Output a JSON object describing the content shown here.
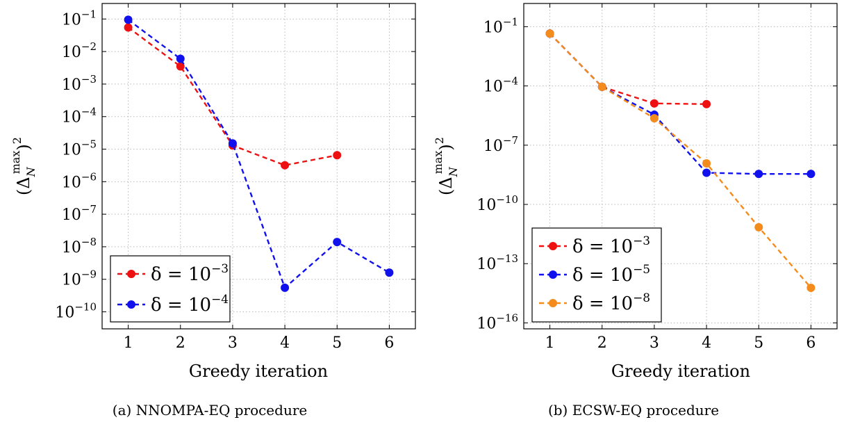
{
  "charts": [
    {
      "caption": "(a) NNOMPA-EQ procedure",
      "xlabel": "Greedy iteration",
      "ylabel_base": "(Δ",
      "ylabel_sub": "N",
      "ylabel_sup": "max",
      "ylabel_close": ")",
      "ylabel_power": "2",
      "x_ticks": [
        "1",
        "2",
        "3",
        "4",
        "5",
        "6"
      ],
      "y_ticks": [
        {
          "base": "10",
          "exp": "−10",
          "value": -10
        },
        {
          "base": "10",
          "exp": "−9",
          "value": -9
        },
        {
          "base": "10",
          "exp": "−8",
          "value": -8
        },
        {
          "base": "10",
          "exp": "−7",
          "value": -7
        },
        {
          "base": "10",
          "exp": "−6",
          "value": -6
        },
        {
          "base": "10",
          "exp": "−5",
          "value": -5
        },
        {
          "base": "10",
          "exp": "−4",
          "value": -4
        },
        {
          "base": "10",
          "exp": "−3",
          "value": -3
        },
        {
          "base": "10",
          "exp": "−2",
          "value": -2
        },
        {
          "base": "10",
          "exp": "−1",
          "value": -1
        }
      ],
      "legend": [
        {
          "prefix": "δ = 10",
          "exp": "−3"
        },
        {
          "prefix": "δ = 10",
          "exp": "−4"
        }
      ]
    },
    {
      "caption": "(b) ECSW-EQ procedure",
      "xlabel": "Greedy iteration",
      "ylabel_base": "(Δ",
      "ylabel_sub": "N",
      "ylabel_sup": "max",
      "ylabel_close": ")",
      "ylabel_power": "2",
      "x_ticks": [
        "1",
        "2",
        "3",
        "4",
        "5",
        "6"
      ],
      "y_ticks": [
        {
          "base": "10",
          "exp": "−16",
          "value": -16
        },
        {
          "base": "10",
          "exp": "−13",
          "value": -13
        },
        {
          "base": "10",
          "exp": "−10",
          "value": -10
        },
        {
          "base": "10",
          "exp": "−7",
          "value": -7
        },
        {
          "base": "10",
          "exp": "−4",
          "value": -4
        },
        {
          "base": "10",
          "exp": "−1",
          "value": -1
        }
      ],
      "legend": [
        {
          "prefix": "δ = 10",
          "exp": "−3"
        },
        {
          "prefix": "δ = 10",
          "exp": "−5"
        },
        {
          "prefix": "δ = 10",
          "exp": "−8"
        }
      ]
    }
  ],
  "chart_data": [
    {
      "type": "line",
      "title": "",
      "caption": "(a) NNOMPA-EQ procedure",
      "xlabel": "Greedy iteration",
      "ylabel": "(Δ_N^max)^2",
      "yscale": "log",
      "xlim": [
        0.5,
        6.5
      ],
      "ylim": [
        3e-11,
        0.3
      ],
      "grid": true,
      "legend_position": "bottom-left",
      "series": [
        {
          "name": "δ = 10^−3",
          "color": "#ee1111",
          "x": [
            1,
            2,
            3,
            4,
            5
          ],
          "y": [
            0.055,
            0.0035,
            1.3e-05,
            3.2e-06,
            6.5e-06
          ]
        },
        {
          "name": "δ = 10^−4",
          "color": "#1111ee",
          "x": [
            1,
            2,
            3,
            4,
            5,
            6
          ],
          "y": [
            0.095,
            0.006,
            1.5e-05,
            5.5e-10,
            1.4e-08,
            1.6e-09
          ]
        }
      ]
    },
    {
      "type": "line",
      "title": "",
      "caption": "(b) ECSW-EQ procedure",
      "xlabel": "Greedy iteration",
      "ylabel": "(Δ_N^max)^2",
      "yscale": "log",
      "xlim": [
        0.5,
        6.5
      ],
      "ylim": [
        5e-17,
        1.5
      ],
      "grid": true,
      "legend_position": "bottom-left",
      "series": [
        {
          "name": "δ = 10^−3",
          "color": "#ee1111",
          "x": [
            1,
            2,
            3,
            4
          ],
          "y": [
            0.045,
            9e-05,
            1.3e-05,
            1.2e-05
          ]
        },
        {
          "name": "δ = 10^−5",
          "color": "#1111ee",
          "x": [
            1,
            2,
            3,
            4,
            5,
            6
          ],
          "y": [
            0.045,
            9e-05,
            3.5e-06,
            4e-09,
            3.5e-09,
            3.5e-09
          ]
        },
        {
          "name": "δ = 10^−8",
          "color": "#f38c1c",
          "x": [
            1,
            2,
            3,
            4,
            5,
            6
          ],
          "y": [
            0.045,
            9e-05,
            2.3e-06,
            1.2e-08,
            7e-12,
            6e-15
          ]
        }
      ]
    }
  ]
}
